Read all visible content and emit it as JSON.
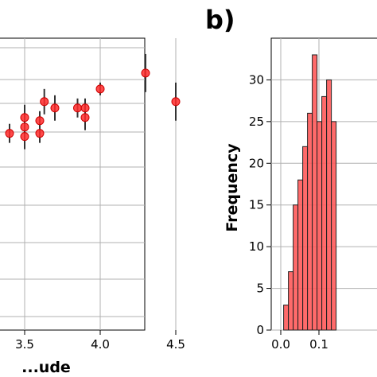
{
  "panel_b_label": "b)",
  "chart_data": [
    {
      "type": "scatter",
      "title": "",
      "xlabel": "...ude",
      "ylabel": "",
      "xlim": [
        2.45,
        4.7
      ],
      "x_ticks": [
        "3.5",
        "4.0",
        "4.5"
      ],
      "grid": true,
      "points": [
        {
          "x": 3.4,
          "y": 0.62,
          "err": 0.03
        },
        {
          "x": 3.5,
          "y": 0.61,
          "err": 0.04
        },
        {
          "x": 3.5,
          "y": 0.64,
          "err": 0.05
        },
        {
          "x": 3.5,
          "y": 0.67,
          "err": 0.04
        },
        {
          "x": 3.6,
          "y": 0.62,
          "err": 0.03
        },
        {
          "x": 3.6,
          "y": 0.66,
          "err": 0.03
        },
        {
          "x": 3.63,
          "y": 0.72,
          "err": 0.04
        },
        {
          "x": 3.7,
          "y": 0.7,
          "err": 0.04
        },
        {
          "x": 3.85,
          "y": 0.7,
          "err": 0.03
        },
        {
          "x": 3.9,
          "y": 0.67,
          "err": 0.04
        },
        {
          "x": 3.9,
          "y": 0.7,
          "err": 0.03
        },
        {
          "x": 4.0,
          "y": 0.76,
          "err": 0.02
        },
        {
          "x": 4.3,
          "y": 0.81,
          "err": 0.06
        },
        {
          "x": 4.5,
          "y": 0.72,
          "err": 0.06
        }
      ]
    },
    {
      "type": "bar",
      "title": "",
      "xlabel": "",
      "ylabel": "Frequency",
      "ylim": [
        0,
        35
      ],
      "y_ticks": [
        "0",
        "5",
        "10",
        "15",
        "20",
        "25",
        "30"
      ],
      "x_ticks": [
        "0.0",
        "0.1"
      ],
      "grid": true,
      "bin_width": 0.0125,
      "bin_start": 0.0075,
      "values": [
        3,
        7,
        15,
        18,
        22,
        26,
        33,
        25,
        28,
        30,
        25
      ]
    }
  ]
}
